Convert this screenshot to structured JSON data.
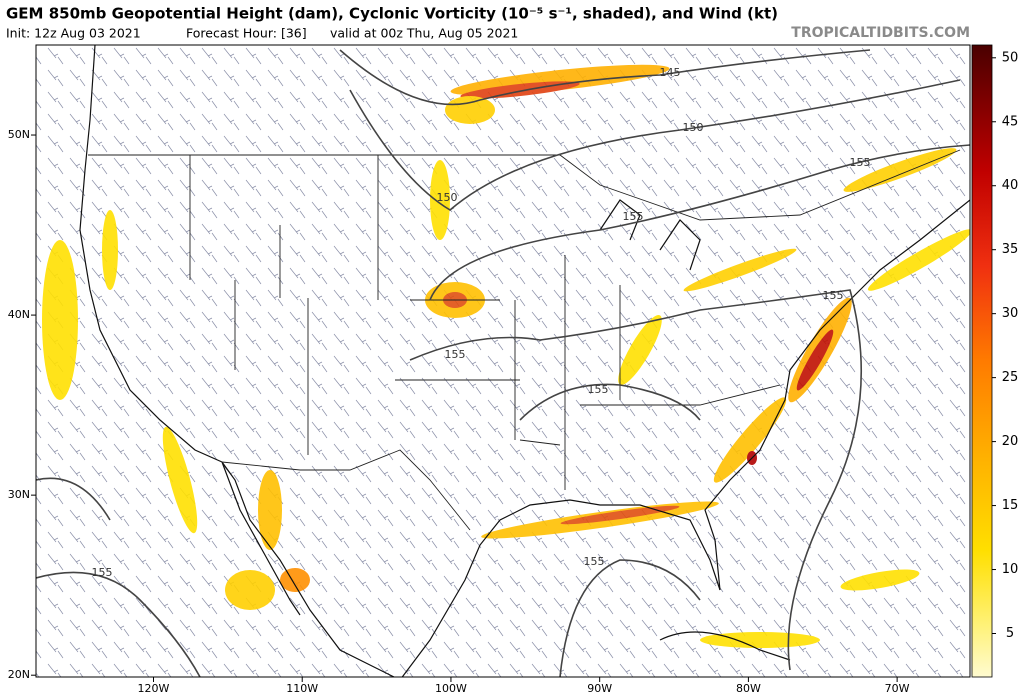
{
  "header": {
    "title": "GEM 850mb Geopotential Height (dam), Cyclonic Vorticity (10⁻⁵ s⁻¹, shaded), and Wind (kt)",
    "init": "Init: 12z Aug 03 2021",
    "forecast_hour": "Forecast Hour: [36]",
    "valid": "valid at 00z Thu, Aug 05 2021",
    "site": "TROPICALTIDBITS.COM"
  },
  "map": {
    "lat_range": [
      19.9,
      55
    ],
    "lon_range": [
      -127.9,
      -65.1
    ],
    "lat_ticks": [
      {
        "value": 50,
        "label": "50N"
      },
      {
        "value": 40,
        "label": "40N"
      },
      {
        "value": 30,
        "label": "30N"
      },
      {
        "value": 20,
        "label": "20N"
      }
    ],
    "lon_ticks": [
      {
        "value": -120,
        "label": "120W"
      },
      {
        "value": -110,
        "label": "110W"
      },
      {
        "value": -100,
        "label": "100W"
      },
      {
        "value": -90,
        "label": "90W"
      },
      {
        "value": -80,
        "label": "80W"
      },
      {
        "value": -70,
        "label": "70W"
      }
    ],
    "contour_labels": [
      "145",
      "150",
      "150",
      "155",
      "155",
      "155",
      "155",
      "155",
      "155",
      "155"
    ]
  },
  "colorbar": {
    "range": [
      1.6,
      51
    ],
    "ticks": [
      5,
      10,
      15,
      20,
      25,
      30,
      35,
      40,
      45,
      50
    ]
  }
}
